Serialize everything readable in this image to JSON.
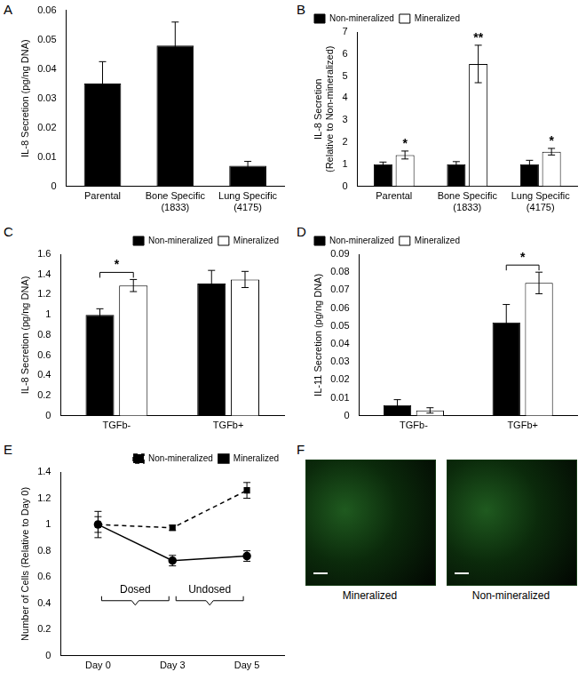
{
  "chart_data": [
    {
      "panel": "A",
      "type": "bar",
      "categories": [
        "Parental",
        "Bone Specific (1833)",
        "Lung Specific (4175)"
      ],
      "values": [
        0.035,
        0.048,
        0.007
      ],
      "errors": [
        0.0075,
        0.008,
        0.0015
      ],
      "color": "#000000",
      "y_label": "IL-8 Secretion (pg/ng DNA)",
      "ylim": [
        0,
        0.06
      ],
      "yticks": [
        0,
        0.01,
        0.02,
        0.03,
        0.04,
        0.05,
        0.06
      ],
      "grid": false
    },
    {
      "panel": "B",
      "type": "bar",
      "categories": [
        "Parental",
        "Bone Specific (1833)",
        "Lung Specific (4175)"
      ],
      "series": [
        {
          "name": "Non-mineralized",
          "color": "#000000",
          "values": [
            1,
            1,
            1
          ],
          "errors": [
            0.1,
            0.12,
            0.18
          ]
        },
        {
          "name": "Mineralized",
          "color": "#ffffff",
          "values": [
            1.42,
            5.55,
            1.57
          ],
          "errors": [
            0.18,
            0.85,
            0.15
          ],
          "significance": [
            "*",
            "**",
            "*"
          ]
        }
      ],
      "y_label": "IL-8 Secretion (Relative to Non-mineralized)",
      "ylim": [
        0,
        7
      ],
      "yticks": [
        0,
        1,
        2,
        3,
        4,
        5,
        6,
        7
      ],
      "grid": false,
      "legend": "top-left"
    },
    {
      "panel": "C",
      "type": "bar",
      "categories": [
        "TGFb-",
        "TGFb+"
      ],
      "series": [
        {
          "name": "Non-mineralized",
          "color": "#000000",
          "values": [
            1.0,
            1.31
          ],
          "errors": [
            0.06,
            0.13
          ]
        },
        {
          "name": "Mineralized",
          "color": "#ffffff",
          "values": [
            1.29,
            1.35
          ],
          "errors": [
            0.06,
            0.08
          ]
        }
      ],
      "comparisons": [
        {
          "category": "TGFb-",
          "label": "*"
        }
      ],
      "y_label": "IL-8 Secretion (pg/ng DNA)",
      "ylim": [
        0,
        1.6
      ],
      "yticks": [
        0,
        0.2,
        0.4,
        0.6,
        0.8,
        1,
        1.2,
        1.4,
        1.6
      ],
      "grid": false,
      "legend": "top-right"
    },
    {
      "panel": "D",
      "type": "bar",
      "categories": [
        "TGFb-",
        "TGFb+"
      ],
      "series": [
        {
          "name": "Non-mineralized",
          "color": "#000000",
          "values": [
            0.006,
            0.052
          ],
          "errors": [
            0.003,
            0.01
          ]
        },
        {
          "name": "Mineralized",
          "color": "#ffffff",
          "values": [
            0.003,
            0.074
          ],
          "errors": [
            0.0015,
            0.006
          ]
        }
      ],
      "comparisons": [
        {
          "category": "TGFb+",
          "label": "*"
        }
      ],
      "y_label": "IL-11 Secretion (pg/ng DNA)",
      "ylim": [
        0,
        0.09
      ],
      "yticks": [
        0,
        0.01,
        0.02,
        0.03,
        0.04,
        0.05,
        0.06,
        0.07,
        0.08,
        0.09
      ],
      "grid": false,
      "legend": "top-left"
    },
    {
      "panel": "E",
      "type": "line",
      "categories": [
        "Day 0",
        "Day 3",
        "Day 5"
      ],
      "series": [
        {
          "name": "Non-mineralized",
          "color": "#000000",
          "marker": "square",
          "line_style": "dashed",
          "values": [
            1,
            0.975,
            1.26
          ],
          "errors": [
            0.1,
            0.02,
            0.06
          ]
        },
        {
          "name": "Mineralized",
          "color": "#000000",
          "marker": "circle",
          "line_style": "solid",
          "values": [
            1,
            0.725,
            0.76
          ],
          "errors": [
            0.06,
            0.04,
            0.04
          ]
        }
      ],
      "brackets": [
        {
          "from": "Day 0",
          "to": "Day 3",
          "label": "Dosed"
        },
        {
          "from": "Day 3",
          "to": "Day 5",
          "label": "Undosed"
        }
      ],
      "y_label": "Number of Cells (Relative to Day 0)",
      "ylim": [
        0,
        1.4
      ],
      "yticks": [
        0,
        0.2,
        0.4,
        0.6,
        0.8,
        1,
        1.2,
        1.4
      ],
      "grid": false,
      "legend": "top-right"
    },
    {
      "panel": "F",
      "type": "image",
      "images": [
        "Mineralized",
        "Non-mineralized"
      ]
    }
  ]
}
